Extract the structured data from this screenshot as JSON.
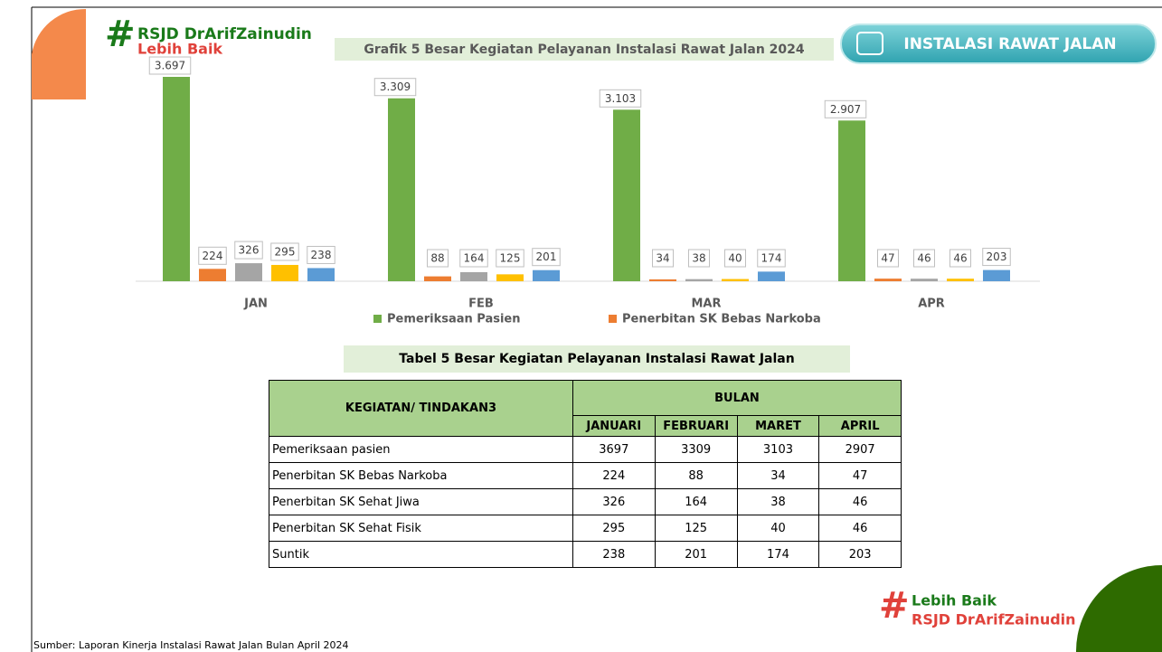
{
  "header": {
    "logo_name": "RSJD DrArifZainudin",
    "logo_tag": "Lebih Baik",
    "badge": "INSTALASI RAWAT JALAN"
  },
  "chart_data": {
    "type": "bar",
    "title": "Grafik 5 Besar Kegiatan Pelayanan Instalasi Rawat Jalan 2024",
    "categories": [
      "JAN",
      "FEB",
      "MAR",
      "APR"
    ],
    "series": [
      {
        "name": "Pemeriksaan Pasien",
        "color": "#70ad47",
        "values": [
          3697,
          3309,
          3103,
          2907
        ],
        "value_labels": [
          "3.697",
          "3.309",
          "3.103",
          "2.907"
        ]
      },
      {
        "name": "Penerbitan SK Bebas Narkoba",
        "color": "#ed7d31",
        "values": [
          224,
          88,
          34,
          47
        ]
      },
      {
        "color": "#a5a5a5",
        "values": [
          326,
          164,
          38,
          46
        ]
      },
      {
        "color": "#ffc000",
        "values": [
          295,
          125,
          40,
          46
        ]
      },
      {
        "color": "#5b9bd5",
        "values": [
          238,
          201,
          174,
          203
        ]
      }
    ],
    "legend": "bottom"
  },
  "table": {
    "title": "Tabel 5 Besar Kegiatan Pelayanan Instalasi Rawat Jalan",
    "header": "KEGIATAN/ TINDAKAN3",
    "group": "BULAN",
    "columns": [
      "JANUARI",
      "FEBRUARI",
      "MARET",
      "APRIL"
    ],
    "rows": [
      {
        "label": "Pemeriksaan pasien",
        "values": [
          "3697",
          "3309",
          "3103",
          "2907"
        ]
      },
      {
        "label": "Penerbitan SK Bebas Narkoba",
        "values": [
          "224",
          "88",
          "34",
          "47"
        ]
      },
      {
        "label": "Penerbitan SK Sehat Jiwa",
        "values": [
          "326",
          "164",
          "38",
          "46"
        ]
      },
      {
        "label": "Penerbitan SK Sehat Fisik",
        "values": [
          "295",
          "125",
          "40",
          "46"
        ]
      },
      {
        "label": "Suntik",
        "values": [
          "238",
          "201",
          "174",
          "203"
        ]
      }
    ]
  },
  "footer": {
    "logo_tag": "Lebih Baik",
    "logo_name": "RSJD DrArifZainudin",
    "source": "Sumber: Laporan Kinerja Instalasi Rawat Jalan Bulan April 2024"
  }
}
